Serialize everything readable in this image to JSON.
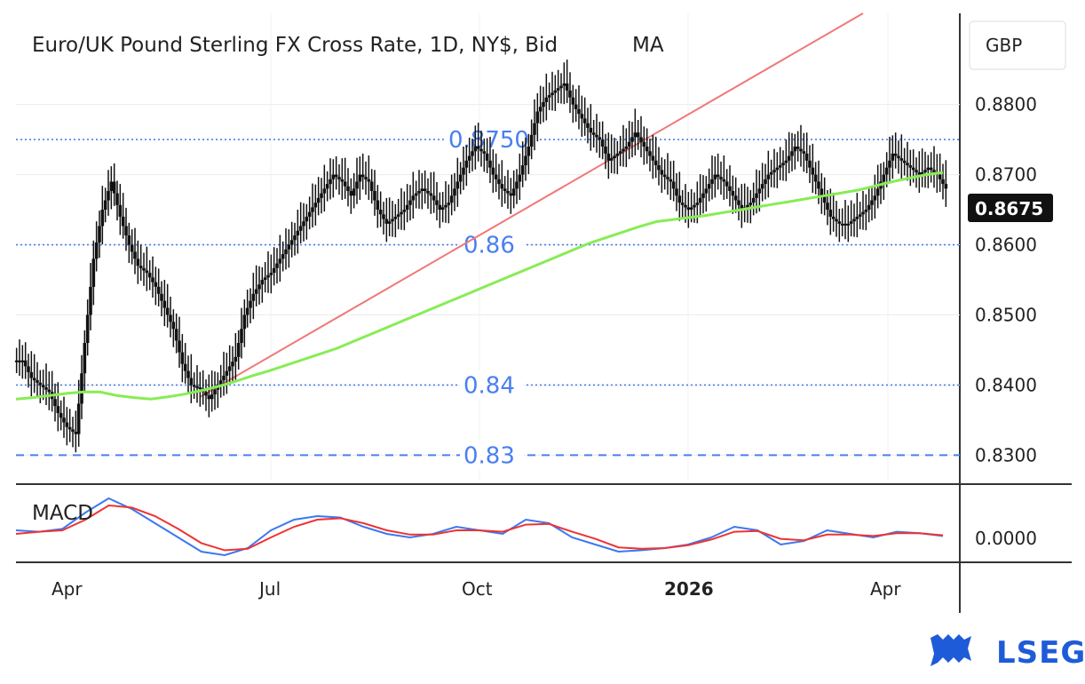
{
  "header": {
    "title": "Euro/UK Pound Sterling FX Cross Rate, 1D, NY$, Bid",
    "indicator": "MA",
    "unit": "GBP"
  },
  "current_price": "0.8675",
  "macd_label": "MACD",
  "brand": "LSEG",
  "colors": {
    "candle": "#111111",
    "ma": "#88ec55",
    "trendline": "#f07878",
    "level_line": "#4a7ff0",
    "macd_line": "#3b78f0",
    "signal_line": "#ee3333"
  },
  "chart_data": {
    "type": "candlestick",
    "title": "Euro/UK Pound Sterling FX Cross Rate, 1D, NY$, Bid",
    "ylim": [
      0.8265,
      0.893
    ],
    "y_ticks": [
      "0.8300",
      "0.8400",
      "0.8500",
      "0.8600",
      "0.8700",
      "0.8800"
    ],
    "x_ticks": [
      "Apr",
      "Jul",
      "Oct",
      "2026",
      "Apr"
    ],
    "levels": [
      {
        "label": "0.8750",
        "value": 0.875,
        "style": "dotted"
      },
      {
        "label": "0.86",
        "value": 0.86,
        "style": "dotted"
      },
      {
        "label": "0.84",
        "value": 0.84,
        "style": "dotted"
      },
      {
        "label": "0.83",
        "value": 0.83,
        "style": "dashed"
      }
    ],
    "closes": [
      0.8435,
      0.841,
      0.84,
      0.839,
      0.836,
      0.834,
      0.833,
      0.846,
      0.858,
      0.865,
      0.869,
      0.864,
      0.86,
      0.857,
      0.856,
      0.854,
      0.851,
      0.848,
      0.843,
      0.84,
      0.8395,
      0.838,
      0.84,
      0.842,
      0.844,
      0.85,
      0.853,
      0.855,
      0.856,
      0.858,
      0.86,
      0.862,
      0.864,
      0.866,
      0.868,
      0.87,
      0.869,
      0.867,
      0.87,
      0.869,
      0.865,
      0.863,
      0.864,
      0.865,
      0.867,
      0.868,
      0.867,
      0.865,
      0.866,
      0.869,
      0.872,
      0.874,
      0.873,
      0.87,
      0.868,
      0.867,
      0.87,
      0.874,
      0.879,
      0.881,
      0.882,
      0.883,
      0.88,
      0.878,
      0.876,
      0.875,
      0.872,
      0.873,
      0.874,
      0.876,
      0.874,
      0.872,
      0.87,
      0.869,
      0.866,
      0.865,
      0.866,
      0.868,
      0.87,
      0.869,
      0.867,
      0.865,
      0.866,
      0.868,
      0.87,
      0.871,
      0.872,
      0.874,
      0.873,
      0.87,
      0.867,
      0.864,
      0.863,
      0.863,
      0.864,
      0.865,
      0.867,
      0.87,
      0.873,
      0.872,
      0.871,
      0.87,
      0.871,
      0.87,
      0.868
    ],
    "ma": [
      0.838,
      0.8382,
      0.8385,
      0.8388,
      0.839,
      0.839,
      0.8385,
      0.8382,
      0.838,
      0.8383,
      0.8387,
      0.8392,
      0.8398,
      0.8405,
      0.8413,
      0.842,
      0.8428,
      0.8436,
      0.8444,
      0.8452,
      0.8462,
      0.8472,
      0.8482,
      0.8492,
      0.8502,
      0.8512,
      0.8522,
      0.8532,
      0.8542,
      0.8552,
      0.8562,
      0.8572,
      0.8582,
      0.8592,
      0.8602,
      0.861,
      0.8618,
      0.8626,
      0.8633,
      0.8636,
      0.8639,
      0.8642,
      0.8646,
      0.865,
      0.8654,
      0.8658,
      0.8662,
      0.8666,
      0.867,
      0.8674,
      0.8678,
      0.8684,
      0.869,
      0.8695,
      0.87,
      0.8703
    ],
    "ma_x_start_index": 0,
    "ma_step": 2,
    "macd": [
      0.001,
      0.0008,
      0.0012,
      0.0035,
      0.0055,
      0.004,
      0.002,
      0.0,
      -0.002,
      -0.0025,
      -0.0015,
      0.001,
      0.0025,
      0.003,
      0.0028,
      0.0015,
      0.0005,
      0.0,
      0.0005,
      0.0015,
      0.001,
      0.0005,
      0.0025,
      0.002,
      0.0,
      -0.001,
      -0.002,
      -0.0018,
      -0.0015,
      -0.001,
      0.0,
      0.0015,
      0.001,
      -0.001,
      -0.0005,
      0.001,
      0.0005,
      0.0,
      0.0008,
      0.0006,
      0.0002
    ],
    "signal": [
      0.0005,
      0.0008,
      0.001,
      0.0025,
      0.0045,
      0.0042,
      0.003,
      0.0012,
      -0.0008,
      -0.0018,
      -0.0016,
      0.0,
      0.0015,
      0.0025,
      0.0027,
      0.002,
      0.001,
      0.0004,
      0.0004,
      0.001,
      0.001,
      0.0008,
      0.0018,
      0.0019,
      0.0008,
      -0.0002,
      -0.0014,
      -0.0016,
      -0.0015,
      -0.0011,
      -0.0003,
      0.0008,
      0.0009,
      -0.0002,
      -0.0004,
      0.0004,
      0.0004,
      0.0002,
      0.0006,
      0.0006,
      0.0003
    ],
    "macd_y_tick": "0.0000"
  }
}
